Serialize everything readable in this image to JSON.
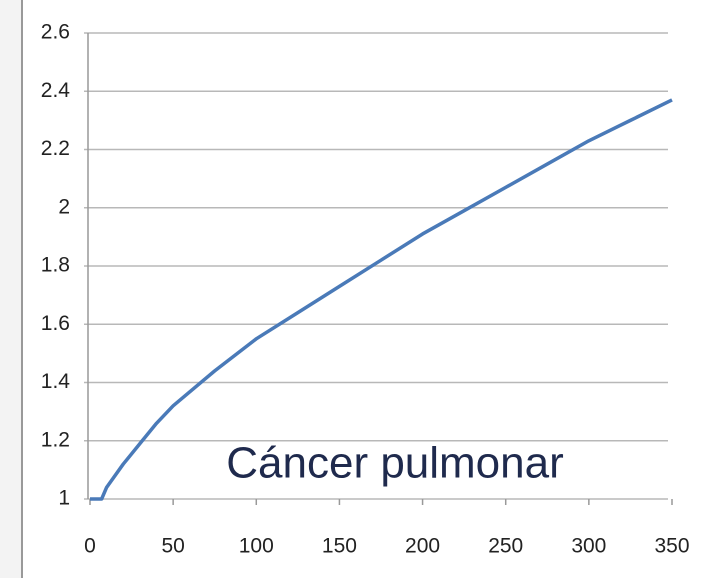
{
  "chart_data": {
    "type": "line",
    "annotation": "Cáncer pulmonar",
    "x": [
      0,
      7,
      10,
      20,
      30,
      40,
      50,
      75,
      100,
      125,
      150,
      175,
      200,
      225,
      250,
      275,
      300,
      325,
      350
    ],
    "series": [
      {
        "name": "Cáncer pulmonar",
        "color": "#4a7ab8",
        "values": [
          1,
          1,
          1.04,
          1.12,
          1.19,
          1.26,
          1.32,
          1.44,
          1.55,
          1.64,
          1.73,
          1.82,
          1.91,
          1.99,
          2.07,
          2.15,
          2.23,
          2.3,
          2.37
        ]
      }
    ],
    "xlim": [
      0,
      350
    ],
    "xticks": [
      0,
      50,
      100,
      150,
      200,
      250,
      300,
      350
    ],
    "ylim": [
      1,
      2.6
    ],
    "yticks": [
      1,
      1.2,
      1.4,
      1.6,
      1.8,
      2,
      2.2,
      2.4,
      2.6
    ],
    "grid": true
  }
}
